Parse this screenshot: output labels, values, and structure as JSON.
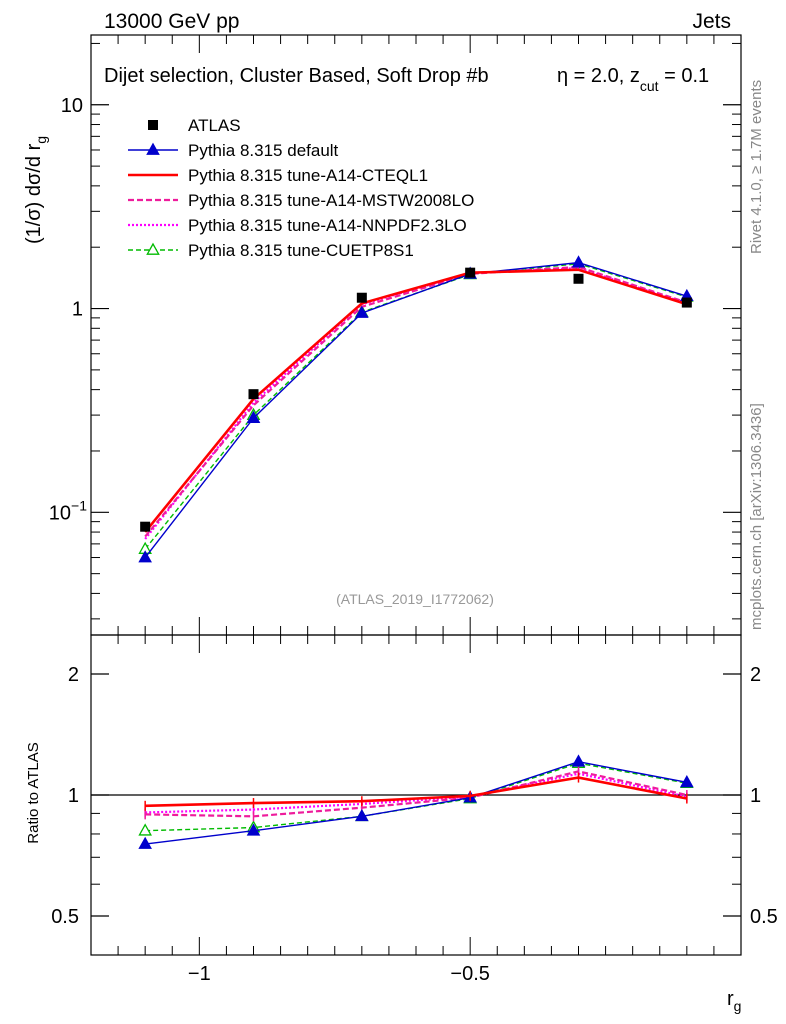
{
  "header": {
    "left": "13000 GeV pp",
    "right": "Jets"
  },
  "title": {
    "main": "Dijet selection, Cluster Based, Soft Drop #b",
    "eta": "η = 2.0, z",
    "sub": "cut",
    "tail": " = 0.1"
  },
  "side_labels": {
    "rivet": "Rivet 4.1.0, ≥ 1.7M events",
    "mcplots": "mcplots.cern.ch [arXiv:1306.3436]"
  },
  "watermark": "(ATLAS_2019_I1772062)",
  "colors": {
    "data": "#000000",
    "default": "#0000cc",
    "cteql1": "#ff0000",
    "mstw": "#ee1c9c",
    "nnpdf": "#ff00ff",
    "cuetp": "#00bb00"
  },
  "chart_data": [
    {
      "type": "line",
      "scale": "log",
      "ylabel": "(1/σ) dσ/d r",
      "ylabel_sub": "g",
      "ylim": [
        0.025,
        22
      ],
      "xlim": [
        -1.2,
        0.0
      ],
      "y_ticks": [
        {
          "value": 0.1,
          "label": "10",
          "sup": "−1"
        },
        {
          "value": 1,
          "label": "1",
          "sup": ""
        },
        {
          "value": 10,
          "label": "10",
          "sup": ""
        }
      ],
      "x": [
        -1.1,
        -0.9,
        -0.7,
        -0.5,
        -0.3,
        -0.1
      ],
      "data": {
        "name": "ATLAS",
        "values": [
          0.085,
          0.38,
          1.13,
          1.5,
          1.4,
          1.07
        ]
      },
      "series": [
        {
          "name": "Pythia 8.315 default",
          "key": "default",
          "values": [
            0.06,
            0.29,
            0.95,
            1.48,
            1.68,
            1.15
          ]
        },
        {
          "name": "Pythia 8.315 tune-A14-CTEQL1",
          "key": "cteql1",
          "values": [
            0.08,
            0.36,
            1.06,
            1.5,
            1.55,
            1.05
          ]
        },
        {
          "name": "Pythia 8.315 tune-A14-MSTW2008LO",
          "key": "mstw",
          "values": [
            0.076,
            0.335,
            1.02,
            1.48,
            1.6,
            1.07
          ]
        },
        {
          "name": "Pythia 8.315 tune-A14-NNPDF2.3LO",
          "key": "nnpdf",
          "values": [
            0.074,
            0.345,
            1.05,
            1.49,
            1.58,
            1.06
          ]
        },
        {
          "name": "Pythia 8.315 tune-CUETP8S1",
          "key": "cuetp",
          "values": [
            0.066,
            0.3,
            0.96,
            1.47,
            1.66,
            1.14
          ]
        }
      ],
      "legend_position": "top-left"
    },
    {
      "type": "line",
      "scale": "log",
      "ylabel": "Ratio to ATLAS",
      "xlabel": "r",
      "xlabel_sub": "g",
      "ylim": [
        0.4,
        2.5
      ],
      "xlim": [
        -1.2,
        0.0
      ],
      "y_ticks": [
        {
          "value": 0.5,
          "label": "0.5"
        },
        {
          "value": 1,
          "label": "1"
        },
        {
          "value": 2,
          "label": "2"
        }
      ],
      "x_ticks": [
        {
          "value": -1.0,
          "label": "−1"
        },
        {
          "value": -0.5,
          "label": "−0.5"
        }
      ],
      "x": [
        -1.1,
        -0.9,
        -0.7,
        -0.5,
        -0.3,
        -0.1
      ],
      "series": [
        {
          "name": "Pythia 8.315 default",
          "key": "default",
          "values": [
            0.755,
            0.815,
            0.885,
            0.985,
            1.21,
            1.075
          ]
        },
        {
          "name": "Pythia 8.315 tune-A14-CTEQL1",
          "key": "cteql1",
          "values": [
            0.94,
            0.955,
            0.965,
            0.995,
            1.105,
            0.98
          ]
        },
        {
          "name": "Pythia 8.315 tune-A14-MSTW2008LO",
          "key": "mstw",
          "values": [
            0.895,
            0.885,
            0.93,
            0.985,
            1.145,
            1.0
          ]
        },
        {
          "name": "Pythia 8.315 tune-A14-NNPDF2.3LO",
          "key": "nnpdf",
          "values": [
            0.905,
            0.92,
            0.95,
            0.99,
            1.13,
            0.99
          ]
        },
        {
          "name": "Pythia 8.315 tune-CUETP8S1",
          "key": "cuetp",
          "values": [
            0.815,
            0.83,
            0.885,
            0.98,
            1.2,
            1.07
          ]
        }
      ]
    }
  ]
}
